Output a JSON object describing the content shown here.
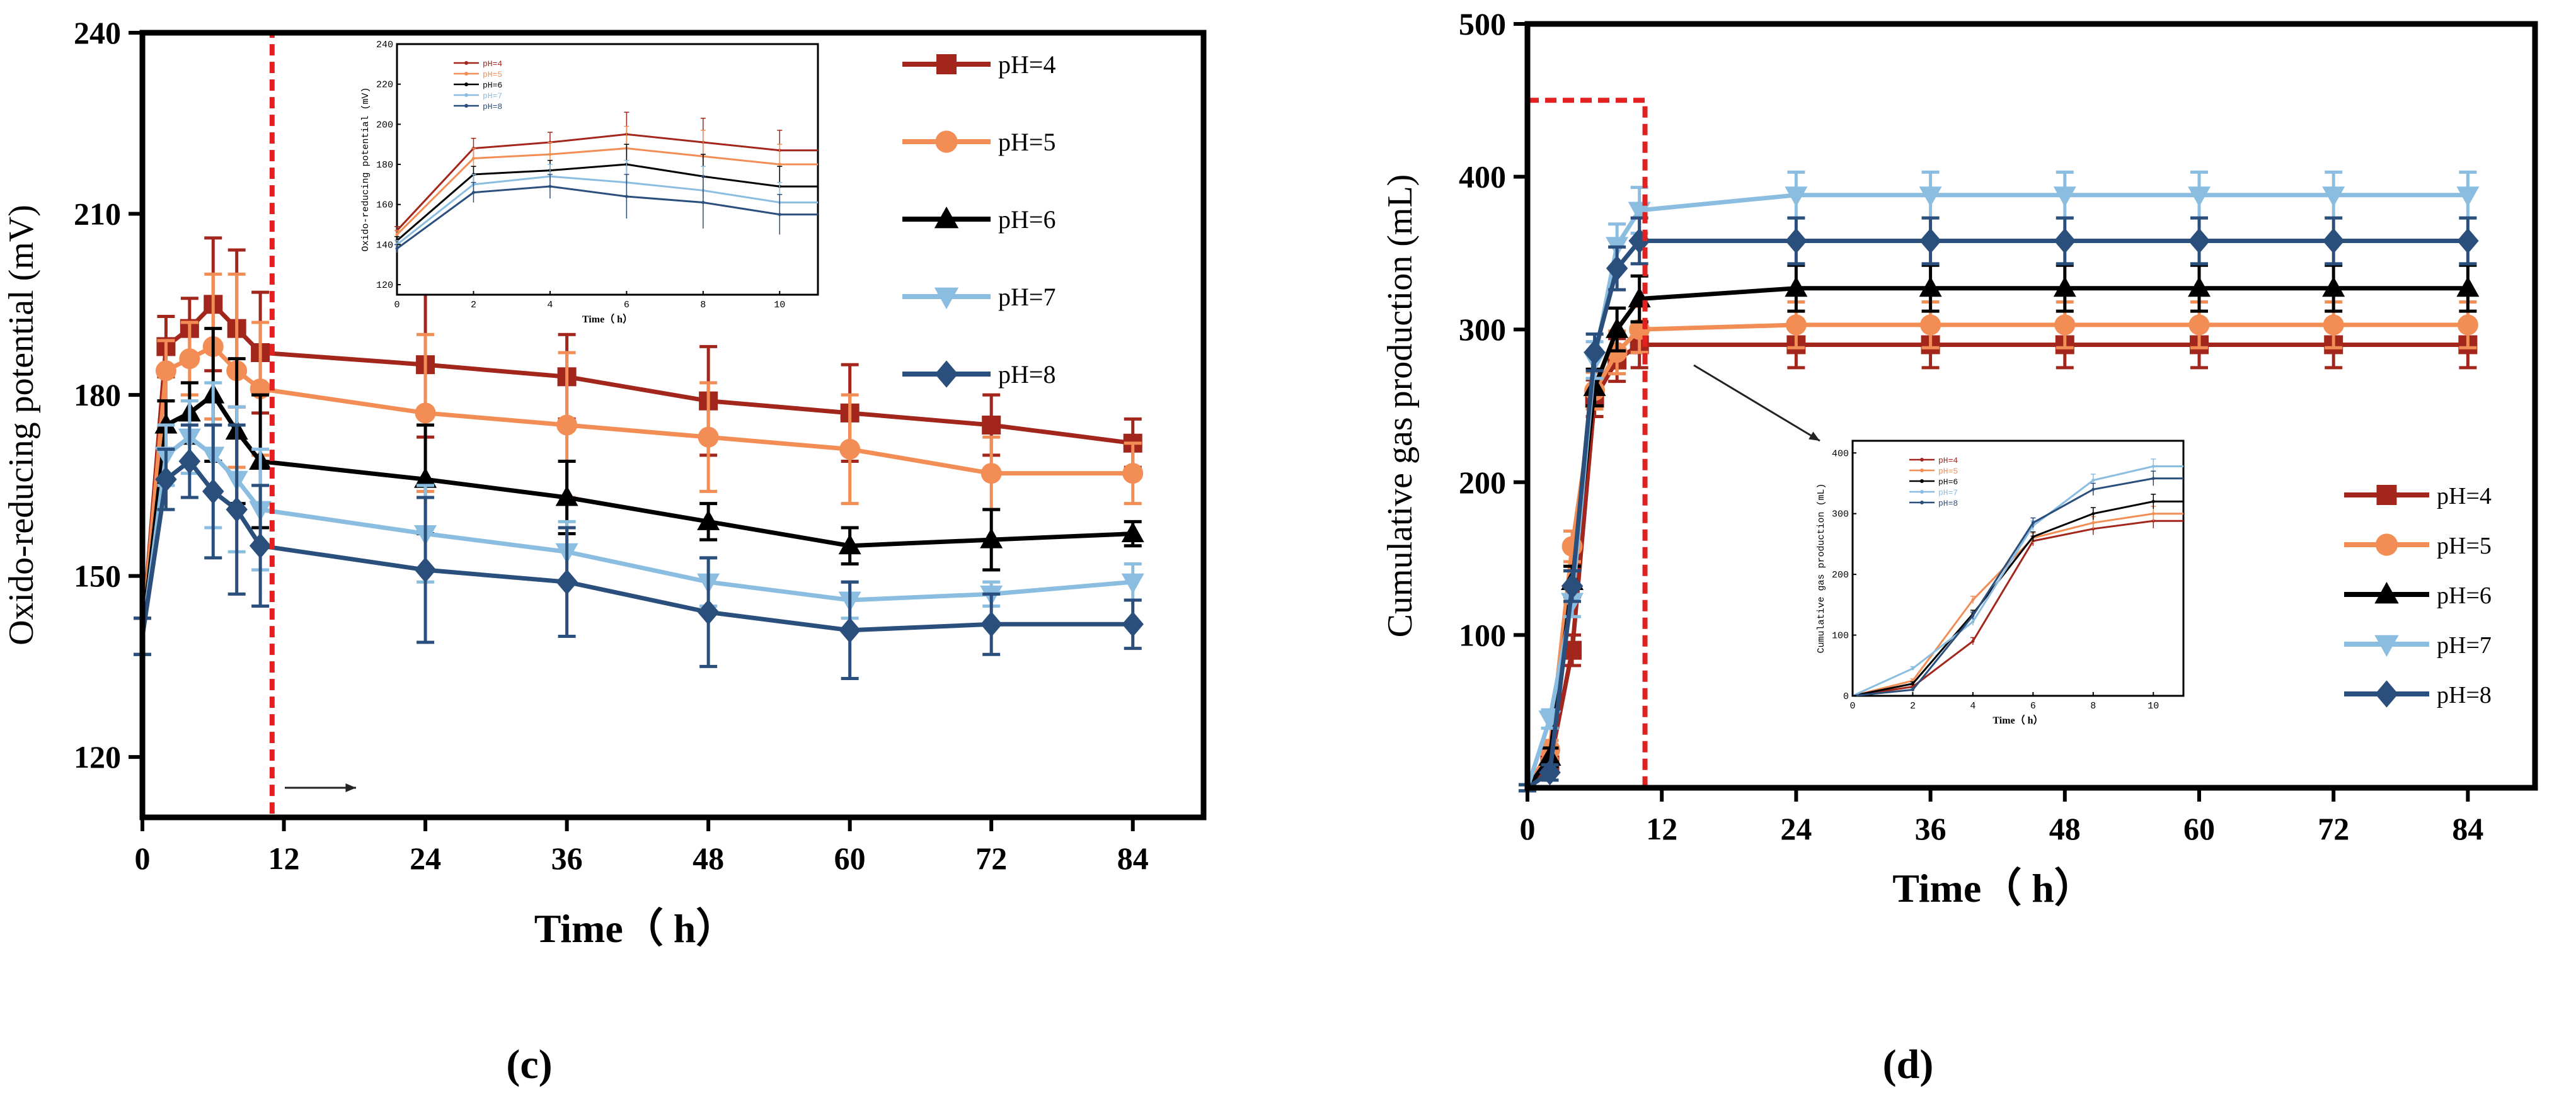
{
  "colors": {
    "pH=4": "#a3261c",
    "pH=5": "#f28e55",
    "pH=6": "#000000",
    "pH=7": "#8bbde0",
    "pH=8": "#2a4f7c",
    "highlight_box": "#e32020"
  },
  "chart_data": [
    {
      "id": "c",
      "type": "line",
      "caption": "(c)",
      "xlabel": "Time（  h）",
      "ylabel": "Oxido-reducing potential (mV)",
      "xlim": [
        0,
        90
      ],
      "ylim": [
        110,
        240
      ],
      "xticks": [
        0,
        12,
        24,
        36,
        48,
        60,
        72,
        84
      ],
      "yticks": [
        120,
        150,
        180,
        210,
        240
      ],
      "legend_position": "top-right",
      "series": [
        {
          "name": "pH=4",
          "marker": "square",
          "x": [
            0,
            2,
            4,
            6,
            8,
            10,
            24,
            36,
            48,
            60,
            72,
            84
          ],
          "y": [
            140,
            188,
            191,
            195,
            191,
            187,
            185,
            183,
            179,
            177,
            175,
            172
          ],
          "err": [
            3,
            5,
            5,
            11,
            13,
            10,
            12,
            7,
            9,
            8,
            5,
            4
          ]
        },
        {
          "name": "pH=5",
          "marker": "circle",
          "x": [
            0,
            2,
            4,
            6,
            8,
            10,
            24,
            36,
            48,
            60,
            72,
            84
          ],
          "y": [
            140,
            184,
            186,
            188,
            184,
            181,
            177,
            175,
            173,
            171,
            167,
            167
          ],
          "err": [
            3,
            5,
            6,
            12,
            16,
            11,
            13,
            12,
            9,
            9,
            6,
            5
          ]
        },
        {
          "name": "pH=6",
          "marker": "triangle",
          "x": [
            0,
            2,
            4,
            6,
            8,
            10,
            24,
            36,
            48,
            60,
            72,
            84
          ],
          "y": [
            140,
            175,
            177,
            180,
            174,
            169,
            166,
            163,
            159,
            155,
            156,
            157
          ],
          "err": [
            3,
            4,
            5,
            11,
            12,
            11,
            9,
            6,
            3,
            3,
            5,
            2
          ]
        },
        {
          "name": "pH=7",
          "marker": "triangle-down",
          "x": [
            0,
            2,
            4,
            6,
            8,
            10,
            24,
            36,
            48,
            60,
            72,
            84
          ],
          "y": [
            140,
            170,
            173,
            170,
            166,
            161,
            157,
            154,
            149,
            146,
            147,
            149
          ],
          "err": [
            3,
            5,
            6,
            12,
            12,
            10,
            8,
            5,
            4,
            3,
            2,
            3
          ]
        },
        {
          "name": "pH=8",
          "marker": "diamond",
          "x": [
            0,
            2,
            4,
            6,
            8,
            10,
            24,
            36,
            48,
            60,
            72,
            84
          ],
          "y": [
            140,
            166,
            169,
            164,
            161,
            155,
            151,
            149,
            144,
            141,
            142,
            142
          ],
          "err": [
            3,
            5,
            6,
            11,
            14,
            10,
            12,
            9,
            9,
            8,
            5,
            4
          ]
        }
      ],
      "highlight_box": {
        "x": [
          0,
          11
        ],
        "y": [
          110,
          240
        ]
      },
      "inset": {
        "xlabel": "Time（  h）",
        "ylabel": "Oxido-reducing potential (mV)",
        "xlim": [
          0,
          11
        ],
        "ylim": [
          115,
          240
        ],
        "xticks": [
          0,
          2,
          4,
          6,
          8,
          10
        ],
        "yticks": [
          120,
          140,
          160,
          180,
          200,
          220,
          240
        ],
        "legend_position": "top-left",
        "x": [
          0,
          2,
          4,
          6,
          8,
          10,
          11
        ],
        "series": [
          {
            "name": "pH=4",
            "y": [
              147,
              188,
              191,
              195,
              191,
              187,
              187
            ],
            "err": [
              2,
              5,
              5,
              11,
              12,
              10,
              0
            ]
          },
          {
            "name": "pH=5",
            "y": [
              145,
              183,
              185,
              188,
              184,
              180,
              180
            ],
            "err": [
              2,
              5,
              6,
              11,
              13,
              10,
              0
            ]
          },
          {
            "name": "pH=6",
            "y": [
              142,
              175,
              177,
              180,
              174,
              169,
              169
            ],
            "err": [
              2,
              4,
              5,
              10,
              11,
              10,
              0
            ]
          },
          {
            "name": "pH=7",
            "y": [
              140,
              170,
              174,
              171,
              167,
              161,
              161
            ],
            "err": [
              2,
              5,
              6,
              11,
              12,
              10,
              0
            ]
          },
          {
            "name": "pH=8",
            "y": [
              138,
              166,
              169,
              164,
              161,
              155,
              155
            ],
            "err": [
              2,
              5,
              6,
              11,
              13,
              10,
              0
            ]
          }
        ]
      }
    },
    {
      "id": "d",
      "type": "line",
      "caption": "(d)",
      "xlabel": "Time（  h）",
      "ylabel": "Cumulative gas production (mL)",
      "xlim": [
        0,
        90
      ],
      "ylim": [
        0,
        500
      ],
      "xticks": [
        0,
        12,
        24,
        36,
        48,
        60,
        72,
        84
      ],
      "yticks": [
        100,
        200,
        300,
        400,
        500
      ],
      "legend_position": "middle-right",
      "series": [
        {
          "name": "pH=4",
          "marker": "square",
          "x": [
            0,
            2,
            4,
            6,
            8,
            10,
            24,
            36,
            48,
            60,
            72,
            84
          ],
          "y": [
            0,
            15,
            90,
            255,
            280,
            290,
            290,
            290,
            290,
            290,
            290,
            290
          ],
          "err": [
            2,
            5,
            10,
            12,
            14,
            15,
            15,
            15,
            15,
            15,
            15,
            15
          ]
        },
        {
          "name": "pH=5",
          "marker": "circle",
          "x": [
            0,
            2,
            4,
            6,
            8,
            10,
            24,
            36,
            48,
            60,
            72,
            84
          ],
          "y": [
            0,
            25,
            158,
            260,
            285,
            300,
            303,
            303,
            303,
            303,
            303,
            303
          ],
          "err": [
            2,
            6,
            10,
            12,
            14,
            15,
            15,
            15,
            15,
            15,
            15,
            15
          ]
        },
        {
          "name": "pH=6",
          "marker": "triangle",
          "x": [
            0,
            2,
            4,
            6,
            8,
            10,
            24,
            36,
            48,
            60,
            72,
            84
          ],
          "y": [
            0,
            20,
            135,
            262,
            300,
            320,
            327,
            327,
            327,
            327,
            327,
            327
          ],
          "err": [
            2,
            6,
            10,
            12,
            14,
            15,
            15,
            15,
            15,
            15,
            15,
            15
          ]
        },
        {
          "name": "pH=7",
          "marker": "triangle-down",
          "x": [
            0,
            2,
            4,
            6,
            8,
            10,
            24,
            36,
            48,
            60,
            72,
            84
          ],
          "y": [
            0,
            45,
            122,
            280,
            355,
            378,
            388,
            388,
            388,
            388,
            388,
            388
          ],
          "err": [
            2,
            6,
            10,
            12,
            14,
            15,
            15,
            15,
            15,
            15,
            15,
            15
          ]
        },
        {
          "name": "pH=8",
          "marker": "diamond",
          "x": [
            0,
            2,
            4,
            6,
            8,
            10,
            24,
            36,
            48,
            60,
            72,
            84
          ],
          "y": [
            0,
            10,
            132,
            285,
            340,
            358,
            358,
            358,
            358,
            358,
            358,
            358
          ],
          "err": [
            2,
            5,
            10,
            12,
            14,
            15,
            15,
            15,
            15,
            15,
            15,
            15
          ]
        }
      ],
      "highlight_box": {
        "x": [
          0,
          10.5
        ],
        "y": [
          0,
          450
        ]
      },
      "inset": {
        "xlabel": "Time（  h）",
        "ylabel": "Cumulative gas production (mL)",
        "xlim": [
          0,
          11
        ],
        "ylim": [
          0,
          420
        ],
        "xticks": [
          0,
          2,
          4,
          6,
          8,
          10
        ],
        "yticks": [
          0,
          100,
          200,
          300,
          400
        ],
        "legend_position": "top-left",
        "x": [
          0,
          2,
          4,
          6,
          8,
          10,
          11
        ],
        "series": [
          {
            "name": "pH=4",
            "y": [
              0,
              15,
              90,
              255,
              275,
              288,
              288
            ],
            "err": [
              0,
              3,
              6,
              8,
              10,
              12,
              0
            ]
          },
          {
            "name": "pH=5",
            "y": [
              0,
              25,
              158,
              260,
              285,
              300,
              300
            ],
            "err": [
              0,
              3,
              6,
              8,
              10,
              12,
              0
            ]
          },
          {
            "name": "pH=6",
            "y": [
              0,
              20,
              135,
              262,
              300,
              320,
              320
            ],
            "err": [
              0,
              3,
              6,
              8,
              10,
              12,
              0
            ]
          },
          {
            "name": "pH=7",
            "y": [
              0,
              45,
              122,
              280,
              355,
              378,
              378
            ],
            "err": [
              0,
              3,
              6,
              8,
              10,
              12,
              0
            ]
          },
          {
            "name": "pH=8",
            "y": [
              0,
              10,
              132,
              285,
              340,
              358,
              358
            ],
            "err": [
              0,
              3,
              6,
              8,
              10,
              12,
              0
            ]
          }
        ]
      }
    }
  ]
}
